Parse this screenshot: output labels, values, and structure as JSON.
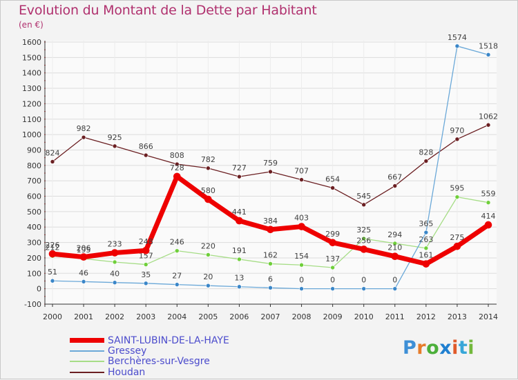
{
  "title": "Evolution du Montant de la Dette par Habitant",
  "unit_label": "(en €)",
  "logo_text": "Proxiti",
  "logo_colors": [
    "#3d8fd6",
    "#e67c2a",
    "#4caf3a",
    "#1f7fd0",
    "#e05a2a",
    "#37a6d8",
    "#72b83c"
  ],
  "chart_data": {
    "type": "line",
    "x": [
      "2000",
      "2001",
      "2002",
      "2003",
      "2004",
      "2005",
      "2006",
      "2007",
      "2008",
      "2009",
      "2010",
      "2011",
      "2012",
      "2013",
      "2014"
    ],
    "ylim": [
      -100,
      1600
    ],
    "yticks": [
      -100,
      0,
      100,
      200,
      300,
      400,
      500,
      600,
      700,
      800,
      900,
      1000,
      1100,
      1200,
      1300,
      1400,
      1500,
      1600
    ],
    "grid": true,
    "legend_position": "bottom-left",
    "series": [
      {
        "name": "Houdan",
        "color": "#6b1f22",
        "marker": "#6b1f22",
        "width": 1.3,
        "values": [
          824,
          982,
          925,
          866,
          808,
          782,
          727,
          759,
          707,
          654,
          545,
          667,
          828,
          970,
          1062
        ],
        "labels": [
          "824",
          "982",
          "925",
          "866",
          "808",
          "782",
          "727",
          "759",
          "707",
          "654",
          "545",
          "667",
          "828",
          "970",
          "1062"
        ]
      },
      {
        "name": "Berchères-sur-Vesgre",
        "color": "#a6dd86",
        "marker": "#6fcf3a",
        "width": 1.3,
        "values": [
          212,
          195,
          173,
          157,
          246,
          220,
          191,
          162,
          154,
          137,
          325,
          294,
          263,
          595,
          559
        ],
        "labels": [
          "212",
          "195",
          "",
          "157",
          "246",
          "220",
          "191",
          "162",
          "154",
          "137",
          "325",
          "294",
          "263",
          "595",
          "559"
        ]
      },
      {
        "name": "Gressey",
        "color": "#6aa8d8",
        "marker": "#3a86c8",
        "width": 1.3,
        "values": [
          51,
          46,
          40,
          35,
          27,
          20,
          13,
          6,
          0,
          0,
          0,
          0,
          365,
          1574,
          1518
        ],
        "labels": [
          "51",
          "46",
          "40",
          "35",
          "27",
          "20",
          "13",
          "6",
          "0",
          "0",
          "0",
          "0",
          "365",
          "1574",
          "1518"
        ]
      },
      {
        "name": "SAINT-LUBIN-DE-LA-HAYE",
        "color": "#ee0000",
        "marker": "#ee0000",
        "width": 7,
        "values": [
          226,
          206,
          233,
          248,
          728,
          580,
          441,
          384,
          403,
          299,
          256,
          210,
          161,
          275,
          414
        ],
        "labels": [
          "226",
          "206",
          "233",
          "248",
          "728",
          "580",
          "441",
          "384",
          "403",
          "299",
          "256",
          "210",
          "161",
          "275",
          "414"
        ]
      }
    ],
    "legend_order": [
      "SAINT-LUBIN-DE-LA-HAYE",
      "Gressey",
      "Berchères-sur-Vesgre",
      "Houdan"
    ]
  }
}
